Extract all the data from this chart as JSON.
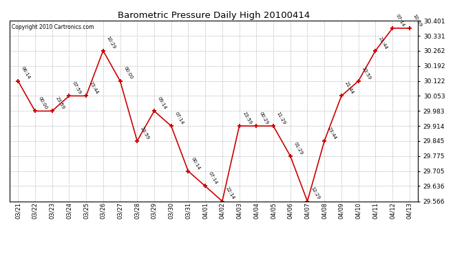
{
  "title": "Barometric Pressure Daily High 20100414",
  "copyright": "Copyright 2010 Cartronics.com",
  "background_color": "#ffffff",
  "line_color": "#cc0000",
  "grid_color": "#bbbbbb",
  "dates": [
    "03/21",
    "03/22",
    "03/23",
    "03/24",
    "03/25",
    "03/26",
    "03/27",
    "03/28",
    "03/29",
    "03/30",
    "03/31",
    "04/01",
    "04/02",
    "04/03",
    "04/04",
    "04/05",
    "04/06",
    "04/07",
    "04/08",
    "04/09",
    "04/10",
    "04/11",
    "04/12",
    "04/13"
  ],
  "values": [
    30.122,
    29.983,
    29.983,
    30.053,
    30.053,
    30.262,
    30.122,
    29.845,
    29.983,
    29.914,
    29.705,
    29.636,
    29.566,
    29.914,
    29.914,
    29.914,
    29.775,
    29.566,
    29.845,
    30.053,
    30.122,
    30.262,
    30.366,
    30.366
  ],
  "annotations": [
    "06:14",
    "00:00",
    "23:59",
    "07:59",
    "23:44",
    "10:29",
    "00:00",
    "23:59",
    "09:14",
    "07:14",
    "00:14",
    "07:14",
    "22:14",
    "23:59",
    "00:29",
    "11:29",
    "01:29",
    "12:29",
    "23:44",
    "21:44",
    "23:59",
    "21:44",
    "07:14",
    "10:59"
  ],
  "ylim": [
    29.566,
    30.401
  ],
  "yticks": [
    29.566,
    29.636,
    29.705,
    29.775,
    29.845,
    29.914,
    29.983,
    30.053,
    30.122,
    30.192,
    30.262,
    30.331,
    30.401
  ]
}
